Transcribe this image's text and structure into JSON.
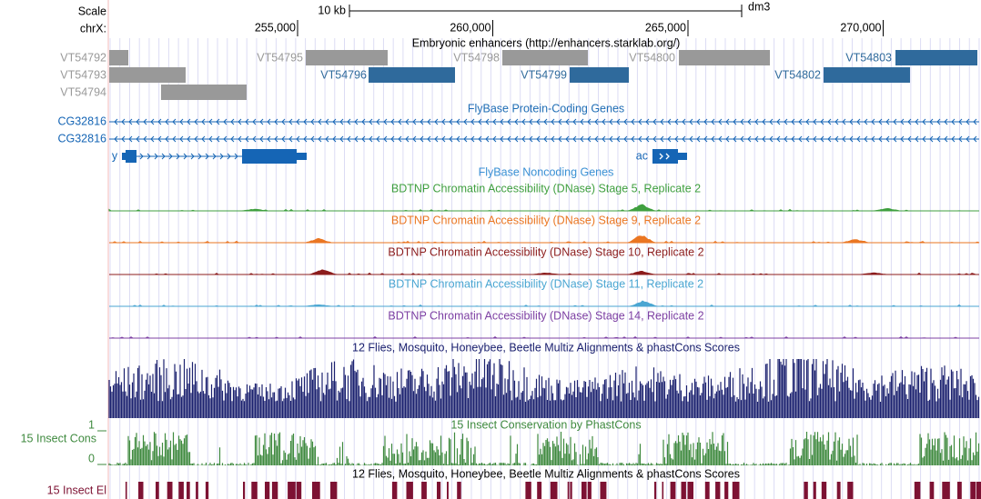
{
  "ruler": {
    "scale_label": "Scale",
    "chrom_label": "chrX:",
    "scale_bar": "10 kb",
    "assembly": "dm3",
    "ticks": [
      {
        "value": 255000,
        "label": "255,000"
      },
      {
        "value": 260000,
        "label": "260,000"
      },
      {
        "value": 265000,
        "label": "265,000"
      },
      {
        "value": 270000,
        "label": "270,000"
      }
    ]
  },
  "enhancers": {
    "title": "Embryonic enhancers (http://enhancers.starklab.org/)",
    "items": [
      "VT54792",
      "VT54793",
      "VT54794",
      "VT54795",
      "VT54796",
      "VT54798",
      "VT54799",
      "VT54800",
      "VT54802",
      "VT54803"
    ]
  },
  "protein_genes": {
    "title": "FlyBase Protein-Coding Genes",
    "transcripts": [
      "CG32816",
      "CG32816"
    ],
    "genes": [
      "y",
      "ac"
    ]
  },
  "noncoding_genes": {
    "title": "FlyBase Noncoding Genes"
  },
  "dnase": [
    {
      "title": "BDTNP Chromatin Accessibility (DNase) Stage 5, Replicate 2",
      "color": "#3f9f3f"
    },
    {
      "title": "BDTNP Chromatin Accessibility (DNase) Stage 9, Replicate 2",
      "color": "#ea7622"
    },
    {
      "title": "BDTNP Chromatin Accessibility (DNase) Stage 10, Replicate 2",
      "color": "#8c1c1c"
    },
    {
      "title": "BDTNP Chromatin Accessibility (DNase) Stage 11, Replicate 2",
      "color": "#4aa6d2"
    },
    {
      "title": "BDTNP Chromatin Accessibility (DNase) Stage 14, Replicate 2",
      "color": "#7d40a3"
    }
  ],
  "multiz": {
    "title": "12 Flies, Mosquito, Honeybee, Beetle Multiz Alignments & phastCons Scores",
    "color": "#1b216f"
  },
  "conservation": {
    "title": "15 Insect Conservation by PhastCons",
    "label": "15 Insect Cons",
    "axis": [
      1,
      0
    ],
    "color": "#3f8a3f"
  },
  "elements": {
    "title": "12 Flies, Mosquito, Honeybee, Beetle Multiz Alignments & phastCons Scores",
    "label": "15 Insect El",
    "color": "#7d1233"
  }
}
